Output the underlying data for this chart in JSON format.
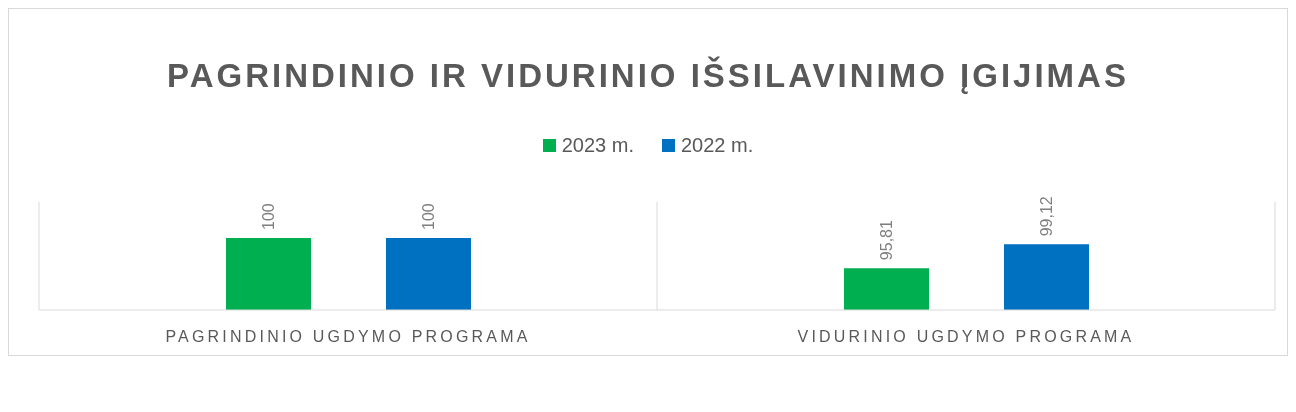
{
  "chart_data": {
    "type": "bar",
    "title": "PAGRINDINIO IR VIDURINIO IŠSILAVINIMO ĮGIJIMAS",
    "categories": [
      "PAGRINDINIO UGDYMO PROGRAMA",
      "VIDURINIO UGDYMO PROGRAMA"
    ],
    "series": [
      {
        "name": "2023 m.",
        "color": "#00b050",
        "values": [
          100,
          95.81
        ],
        "value_labels": [
          "100",
          "95,81"
        ]
      },
      {
        "name": "2022 m.",
        "color": "#0070c0",
        "values": [
          100,
          99.12
        ],
        "value_labels": [
          "100",
          "99,12"
        ]
      }
    ],
    "ylim": [
      90,
      105
    ],
    "legend": "top",
    "tick_labels": "x"
  }
}
